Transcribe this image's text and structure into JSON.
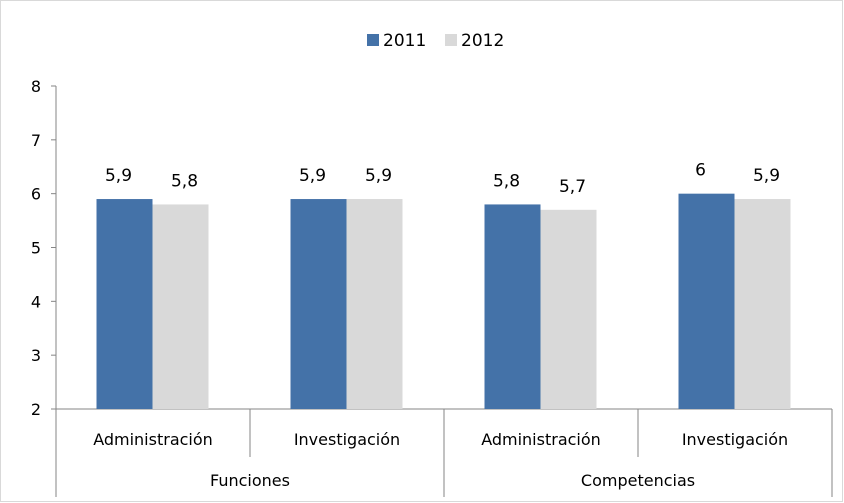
{
  "chart_data": {
    "type": "bar",
    "categories": [
      "Administración",
      "Investigación",
      "Administración",
      "Investigación"
    ],
    "groups": [
      {
        "label": "Funciones",
        "categories": [
          "Administración",
          "Investigación"
        ]
      },
      {
        "label": "Competencias",
        "categories": [
          "Administración",
          "Investigación"
        ]
      }
    ],
    "series": [
      {
        "name": "2011",
        "values": [
          5.9,
          5.9,
          5.8,
          6
        ],
        "labels": [
          "5,9",
          "5,9",
          "5,8",
          "6"
        ],
        "color": "#4472A8"
      },
      {
        "name": "2012",
        "values": [
          5.8,
          5.9,
          5.7,
          5.9
        ],
        "labels": [
          "5,8",
          "5,9",
          "5,7",
          "5,9"
        ],
        "color": "#D9D9D9"
      }
    ],
    "ylim": [
      2,
      8
    ],
    "yticks": [
      "2",
      "3",
      "4",
      "5",
      "6",
      "7",
      "8"
    ],
    "title": "",
    "xlabel": "",
    "ylabel": "",
    "legend_position": "top",
    "grid": false
  }
}
